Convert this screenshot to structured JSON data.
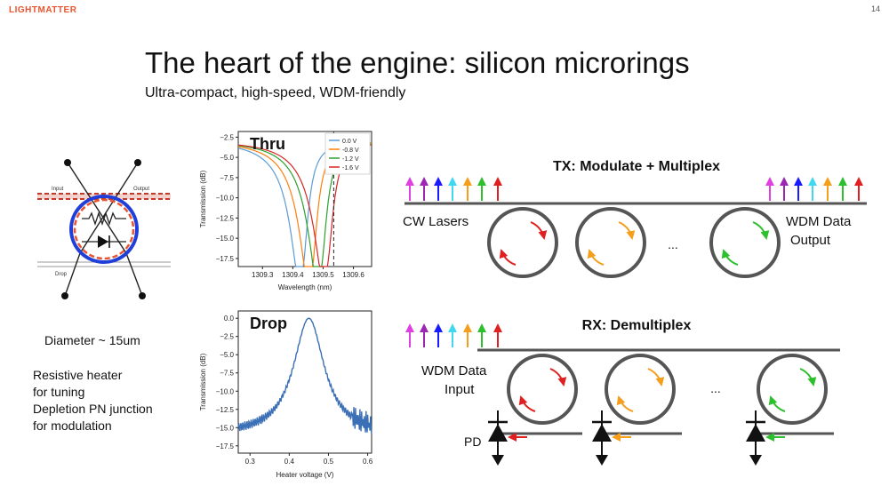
{
  "header": {
    "logo": "LIGHTMATTER",
    "page_number": "14"
  },
  "title": "The heart of the engine: silicon microrings",
  "subtitle": "Ultra-compact, high-speed, WDM-friendly",
  "ring_device": {
    "labels": {
      "input": "Input",
      "output": "Output",
      "drop": "Drop"
    },
    "diameter": "Diameter ~ 15um",
    "notes": [
      "Resistive heater",
      "for tuning",
      "Depletion PN junction",
      "for modulation"
    ]
  },
  "colors": {
    "accent": "#e8542f",
    "ring": "#1f3fd8",
    "junction": "#e8542f",
    "laser_colors": [
      "#e040e0",
      "#9c27b0",
      "#1a1aff",
      "#40d8f0",
      "#f59e1b",
      "#2cc02c",
      "#e02020"
    ]
  },
  "chart_data": [
    {
      "type": "line",
      "title": "Thru",
      "xlabel": "Wavelength (nm)",
      "ylabel": "Transmission (dB)",
      "xlim": [
        1309.22,
        1309.66
      ],
      "ylim": [
        -18.5,
        -1.8
      ],
      "xticks": [
        1309.3,
        1309.4,
        1309.5,
        1309.6
      ],
      "xtick_labels": [
        "1309.3",
        "1309.4",
        "1309.5",
        "1309.6"
      ],
      "yticks": [
        -2.5,
        -5.0,
        -7.5,
        -10.0,
        -12.5,
        -15.0,
        -17.5
      ],
      "ytick_labels": [
        "−2.5",
        "−5.0",
        "−7.5",
        "−10.0",
        "−12.5",
        "−15.0",
        "−17.5"
      ],
      "vline": 1309.535,
      "series": [
        {
          "name": "0.0 V",
          "color": "#5b9bd5",
          "center": 1309.43,
          "depth": 16.0,
          "width": 0.035
        },
        {
          "name": "-0.8 V",
          "color": "#ff7f0e",
          "center": 1309.46,
          "depth": 16.3,
          "width": 0.036
        },
        {
          "name": "-1.2 V",
          "color": "#2ca02c",
          "center": 1309.49,
          "depth": 16.2,
          "width": 0.037
        },
        {
          "name": "-1.6 V",
          "color": "#d62728",
          "center": 1309.51,
          "depth": 15.9,
          "width": 0.038
        }
      ]
    },
    {
      "type": "line",
      "title": "Drop",
      "xlabel": "Heater voltage (V)",
      "ylabel": "Transmission (dB)",
      "xlim": [
        0.27,
        0.61
      ],
      "ylim": [
        -18.5,
        1.0
      ],
      "xticks": [
        0.3,
        0.4,
        0.5,
        0.6
      ],
      "xtick_labels": [
        "0.3",
        "0.4",
        "0.5",
        "0.6"
      ],
      "yticks": [
        0.0,
        -2.5,
        -5.0,
        -7.5,
        -10.0,
        -12.5,
        -15.0,
        -17.5
      ],
      "ytick_labels": [
        "0.0",
        "−2.5",
        "−5.0",
        "−7.5",
        "−10.0",
        "−12.5",
        "−15.0",
        "−17.5"
      ],
      "series": [
        {
          "name": "drop",
          "color": "#3b6fb6",
          "center": 0.45,
          "peak": 0.0,
          "width": 0.06
        }
      ]
    }
  ],
  "tx": {
    "title": "TX: Modulate + Multiplex",
    "input_label": "CW Lasers",
    "output_label": [
      "WDM Data",
      "Output"
    ],
    "ellipsis": "..."
  },
  "rx": {
    "title": "RX: Demultiplex",
    "input_label": [
      "WDM Data",
      "Input"
    ],
    "pd_label": "PD",
    "ellipsis": "..."
  }
}
